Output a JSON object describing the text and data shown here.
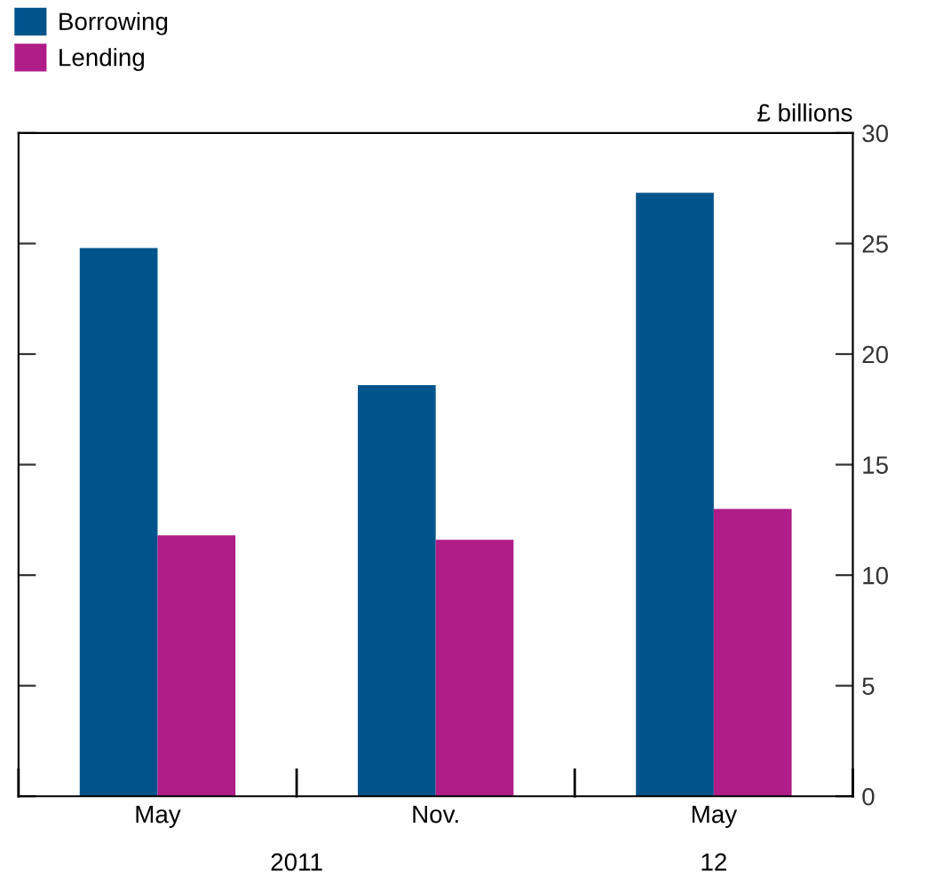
{
  "chart_data": {
    "type": "bar",
    "ylabel": "£ billions",
    "categories": [
      "May",
      "Nov.",
      "May"
    ],
    "series": [
      {
        "name": "Borrowing",
        "color": "#00548c",
        "values": [
          24.8,
          18.6,
          27.3
        ]
      },
      {
        "name": "Lending",
        "color": "#b01c88",
        "values": [
          11.8,
          11.6,
          13.0
        ]
      }
    ],
    "ylim": [
      0,
      30
    ],
    "yticks": [
      0,
      5,
      10,
      15,
      20,
      25,
      30
    ],
    "annotations": [
      "2011",
      "12"
    ],
    "legend": "top left",
    "grid": false
  }
}
